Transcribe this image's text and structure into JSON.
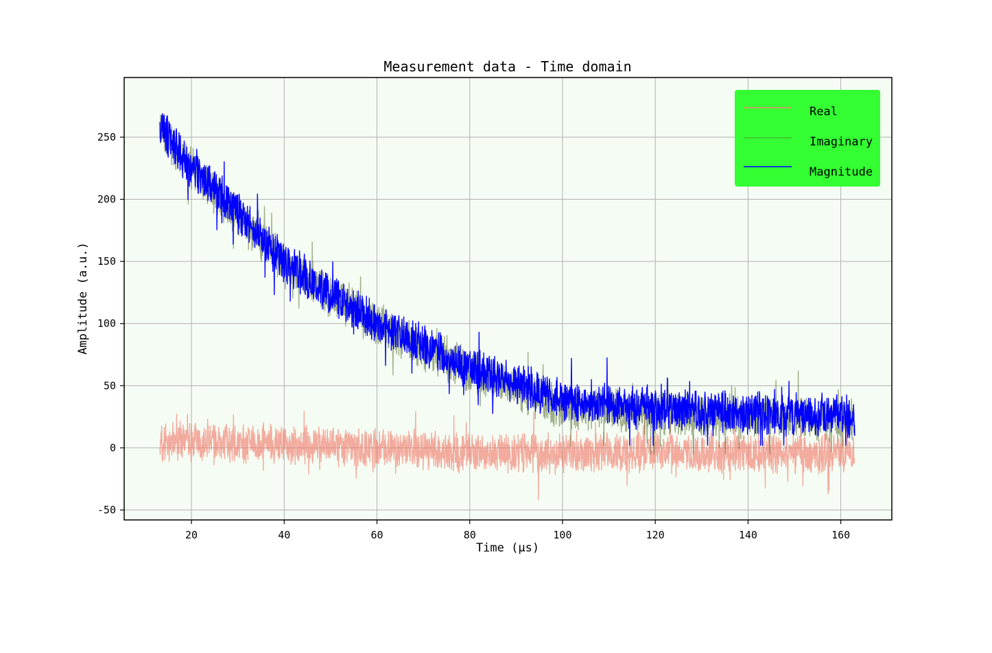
{
  "chart_data": {
    "type": "line",
    "title": "Measurement data - Time domain",
    "xlabel": "Time (μs)",
    "ylabel": "Amplitude (a.u.)",
    "xlim": [
      5.5,
      171
    ],
    "ylim": [
      -58,
      298
    ],
    "xticks": [
      20,
      40,
      60,
      80,
      100,
      120,
      140,
      160
    ],
    "yticks": [
      -50,
      0,
      50,
      100,
      150,
      200,
      250
    ],
    "grid": true,
    "legend_position": "top-right",
    "plot_background": "#f5fcf3",
    "legend_background": "#33ff33",
    "x_start": 13.2,
    "x_end": 163,
    "series": [
      {
        "name": "Real",
        "color": "#f08070",
        "opacity": 0.65,
        "legend_line_opacity": 1,
        "trend": {
          "t": [
            13.2,
            20,
            40,
            60,
            80,
            100,
            120,
            140,
            163
          ],
          "v": [
            5,
            4,
            3,
            0,
            -4,
            -5,
            -4,
            -4,
            -5
          ]
        },
        "noise_amplitude": 13,
        "value_range": [
          -43,
          56
        ]
      },
      {
        "name": "Imaginary",
        "color": "#556b2f",
        "opacity": 0.55,
        "legend_line_opacity": 0.45,
        "trend": {
          "t": [
            13.2,
            20,
            40,
            60,
            80,
            100,
            120,
            140,
            163
          ],
          "v": [
            256,
            224,
            148,
            98,
            62,
            32,
            28,
            25,
            22
          ]
        },
        "noise_amplitude": 14,
        "value_range": [
          -5,
          275
        ]
      },
      {
        "name": "Magnitude",
        "color": "#0000ff",
        "opacity": 1,
        "legend_line_opacity": 1,
        "trend": {
          "t": [
            13.2,
            20,
            40,
            60,
            80,
            100,
            120,
            140,
            163
          ],
          "v": [
            258,
            226,
            150,
            100,
            65,
            38,
            32,
            28,
            25
          ]
        },
        "noise_amplitude": 14,
        "value_range": [
          2,
          282
        ]
      }
    ]
  }
}
